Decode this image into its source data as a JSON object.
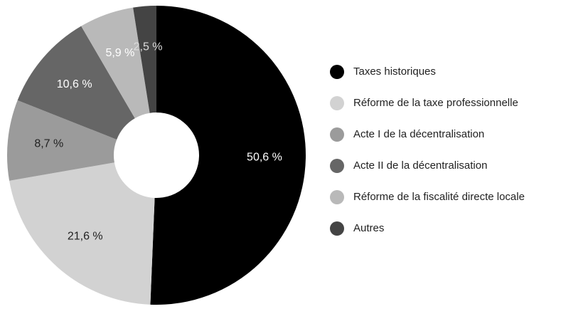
{
  "chart_data": {
    "type": "donut",
    "categories": [
      "Taxes historiques",
      "Réforme de la taxe professionnelle",
      "Acte I de la décentralisation",
      "Acte II de la décentralisation",
      "Réforme de la fiscalité directe locale",
      "Autres"
    ],
    "values": [
      50.6,
      21.6,
      8.7,
      10.6,
      5.9,
      2.5
    ],
    "value_labels": [
      "50,6 %",
      "21,6 %",
      "8,7 %",
      "10,6 %",
      "5,9 %",
      "2,5 %"
    ],
    "colors": [
      "#000000",
      "#d2d2d2",
      "#9b9b9b",
      "#666666",
      "#b9b9b9",
      "#444444"
    ],
    "label_colors": [
      "#ffffff",
      "#222222",
      "#222222",
      "#ffffff",
      "#ffffff",
      "#dddddd"
    ],
    "legend": "right"
  }
}
